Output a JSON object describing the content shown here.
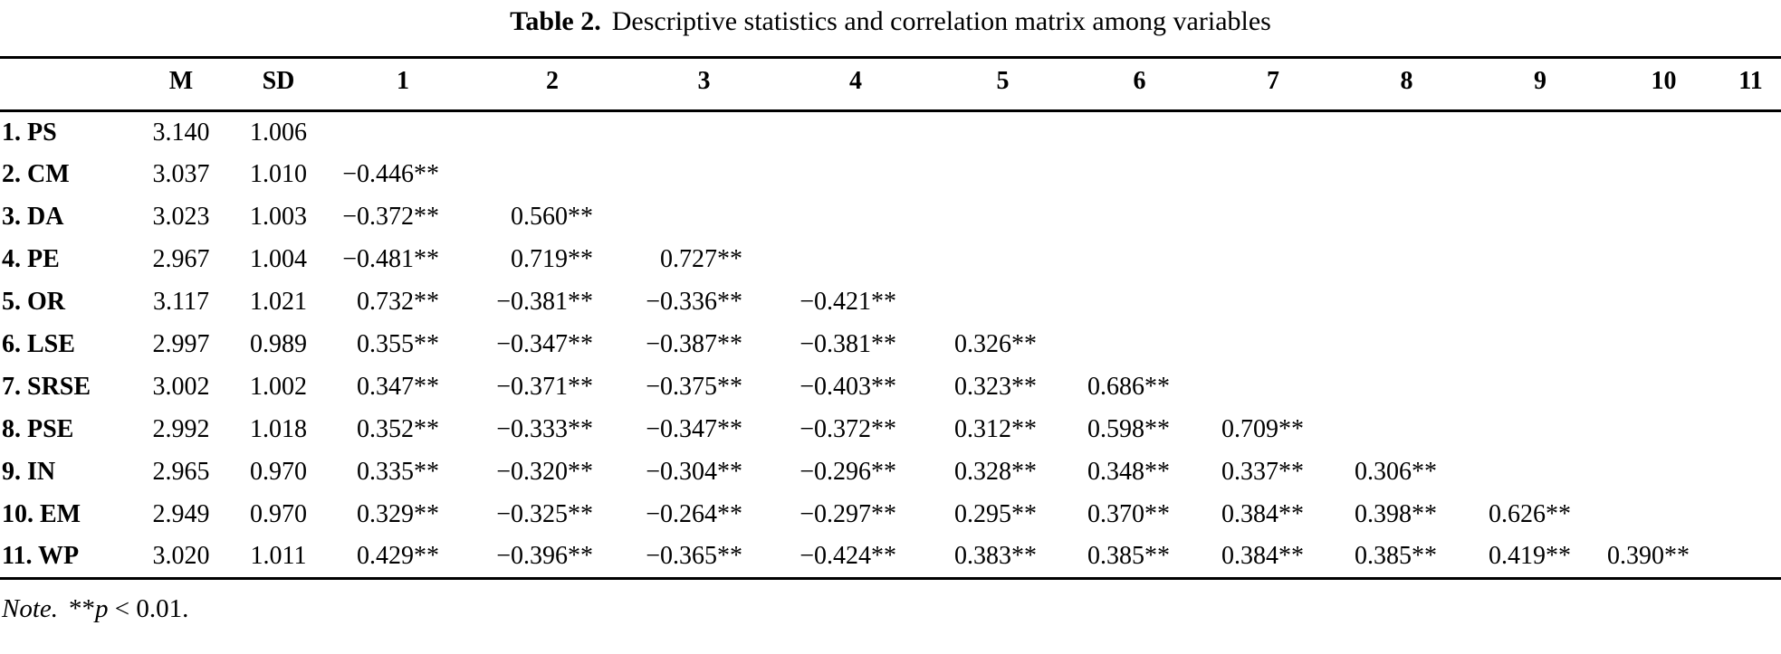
{
  "title": {
    "label": "Table 2.",
    "text": "Descriptive statistics and correlation matrix among variables"
  },
  "table": {
    "headers": [
      "",
      "M",
      "SD",
      "1",
      "2",
      "3",
      "4",
      "5",
      "6",
      "7",
      "8",
      "9",
      "10",
      "11"
    ],
    "rows": [
      {
        "label": "1. PS",
        "m": "3.140",
        "sd": "1.006",
        "corr": []
      },
      {
        "label": "2. CM",
        "m": "3.037",
        "sd": "1.010",
        "corr": [
          "−0.446**"
        ]
      },
      {
        "label": "3. DA",
        "m": "3.023",
        "sd": "1.003",
        "corr": [
          "−0.372**",
          "0.560**"
        ]
      },
      {
        "label": "4. PE",
        "m": "2.967",
        "sd": "1.004",
        "corr": [
          "−0.481**",
          "0.719**",
          "0.727**"
        ]
      },
      {
        "label": "5. OR",
        "m": "3.117",
        "sd": "1.021",
        "corr": [
          "0.732**",
          "−0.381**",
          "−0.336**",
          "−0.421**"
        ]
      },
      {
        "label": "6. LSE",
        "m": "2.997",
        "sd": "0.989",
        "corr": [
          "0.355**",
          "−0.347**",
          "−0.387**",
          "−0.381**",
          "0.326**"
        ]
      },
      {
        "label": "7. SRSE",
        "m": "3.002",
        "sd": "1.002",
        "corr": [
          "0.347**",
          "−0.371**",
          "−0.375**",
          "−0.403**",
          "0.323**",
          "0.686**"
        ]
      },
      {
        "label": "8. PSE",
        "m": "2.992",
        "sd": "1.018",
        "corr": [
          "0.352**",
          "−0.333**",
          "−0.347**",
          "−0.372**",
          "0.312**",
          "0.598**",
          "0.709**"
        ]
      },
      {
        "label": "9. IN",
        "m": "2.965",
        "sd": "0.970",
        "corr": [
          "0.335**",
          "−0.320**",
          "−0.304**",
          "−0.296**",
          "0.328**",
          "0.348**",
          "0.337**",
          "0.306**"
        ]
      },
      {
        "label": "10. EM",
        "m": "2.949",
        "sd": "0.970",
        "corr": [
          "0.329**",
          "−0.325**",
          "−0.264**",
          "−0.297**",
          "0.295**",
          "0.370**",
          "0.384**",
          "0.398**",
          "0.626**"
        ]
      },
      {
        "label": "11. WP",
        "m": "3.020",
        "sd": "1.011",
        "corr": [
          "0.429**",
          "−0.396**",
          "−0.365**",
          "−0.424**",
          "0.383**",
          "0.385**",
          "0.384**",
          "0.385**",
          "0.419**",
          "0.390**"
        ]
      }
    ]
  },
  "note": {
    "note_label": "Note.",
    "stars": "**",
    "p_symbol": "p",
    "condition": " < 0.01."
  },
  "colors": {
    "text": "#000000",
    "background": "#ffffff",
    "rule": "#000000"
  }
}
